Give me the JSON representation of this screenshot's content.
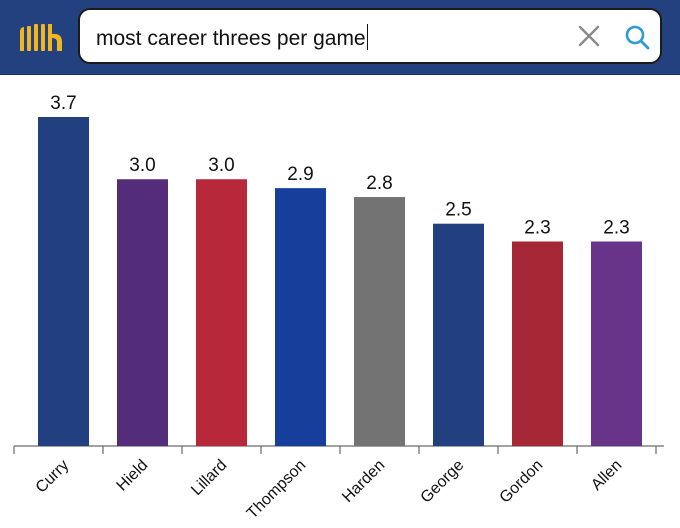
{
  "search": {
    "query": "most career threes per game"
  },
  "icons": {
    "logo": "basketball-reference-logo-icon",
    "clear": "close-icon",
    "search": "search-icon"
  },
  "colors": {
    "header_bg": "#23417f",
    "logo_gold": "#f1b51f",
    "clear_icon": "#8a8a8a",
    "search_icon": "#2e9bd4"
  },
  "chart_data": {
    "type": "bar",
    "title": "",
    "xlabel": "",
    "ylabel": "",
    "ylim": [
      0,
      3.7
    ],
    "categories": [
      "Curry",
      "Hield",
      "Lillard",
      "Thompson",
      "Harden",
      "George",
      "Gordon",
      "Allen"
    ],
    "values": [
      3.7,
      3.0,
      3.0,
      2.9,
      2.8,
      2.5,
      2.3,
      2.3
    ],
    "value_labels": [
      "3.7",
      "3.0",
      "3.0",
      "2.9",
      "2.8",
      "2.5",
      "2.3",
      "2.3"
    ],
    "bar_colors": [
      "#22407f",
      "#532d7a",
      "#b7283a",
      "#163f9c",
      "#737373",
      "#22407f",
      "#a52634",
      "#68348a"
    ],
    "grid": false,
    "legend": "none"
  }
}
